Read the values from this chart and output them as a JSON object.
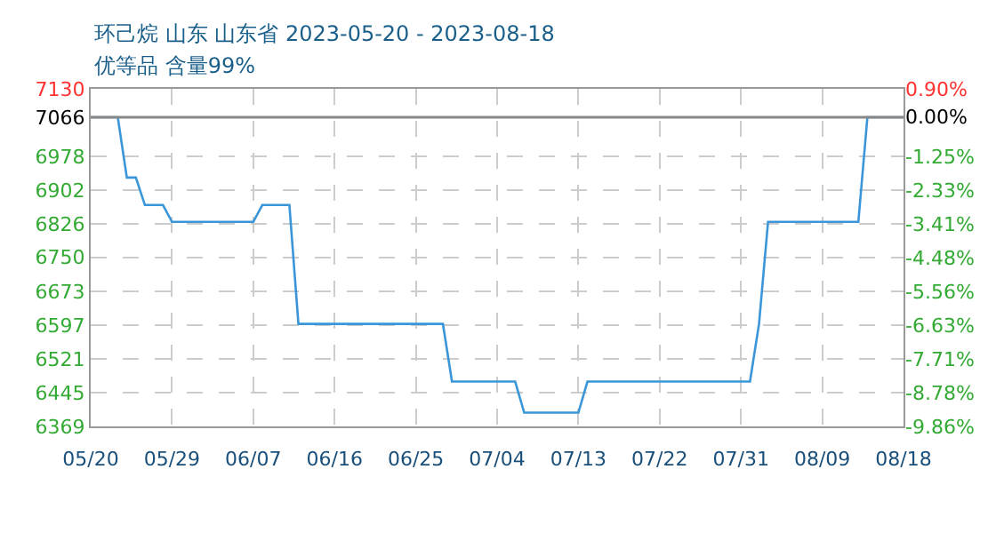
{
  "chart_data": {
    "type": "line",
    "title": "环己烷 山东 山东省 2023-05-20 - 2023-08-18",
    "subtitle": "优等品 含量99%",
    "x": [
      "2023-05-20",
      "2023-05-23",
      "2023-05-24",
      "2023-05-25",
      "2023-05-26",
      "2023-05-28",
      "2023-05-29",
      "2023-06-07",
      "2023-06-08",
      "2023-06-11",
      "2023-06-12",
      "2023-06-28",
      "2023-06-29",
      "2023-07-06",
      "2023-07-07",
      "2023-07-13",
      "2023-07-14",
      "2023-08-01",
      "2023-08-02",
      "2023-08-03",
      "2023-08-13",
      "2023-08-14",
      "2023-08-18"
    ],
    "series": [
      {
        "color": "#3a96d8",
        "values": [
          7066,
          7066,
          6930,
          6930,
          6868,
          6868,
          6830,
          6830,
          6868,
          6868,
          6600,
          6600,
          6470,
          6470,
          6400,
          6400,
          6470,
          6470,
          6600,
          6830,
          6830,
          7066,
          7066
        ]
      }
    ],
    "xlim": [
      "2023-05-20",
      "2023-08-18"
    ],
    "xticks": [
      {
        "value": "2023-05-20",
        "label": "05/20"
      },
      {
        "value": "2023-05-29",
        "label": "05/29"
      },
      {
        "value": "2023-06-07",
        "label": "06/07"
      },
      {
        "value": "2023-06-16",
        "label": "06/16"
      },
      {
        "value": "2023-06-25",
        "label": "06/25"
      },
      {
        "value": "2023-07-04",
        "label": "07/04"
      },
      {
        "value": "2023-07-13",
        "label": "07/13"
      },
      {
        "value": "2023-07-22",
        "label": "07/22"
      },
      {
        "value": "2023-07-31",
        "label": "07/31"
      },
      {
        "value": "2023-08-09",
        "label": "08/09"
      },
      {
        "value": "2023-08-18",
        "label": "08/18"
      }
    ],
    "ylim": [
      6369,
      7130
    ],
    "yticks": [
      7130,
      7066,
      6978,
      6902,
      6826,
      6750,
      6673,
      6597,
      6521,
      6445,
      6369
    ],
    "y2lim": [
      -9.86,
      0.9
    ],
    "y2ticks": [
      {
        "value": 0.9,
        "label": "0.90%"
      },
      {
        "value": 0.0,
        "label": "0.00%"
      },
      {
        "value": -1.25,
        "label": "-1.25%"
      },
      {
        "value": -2.33,
        "label": "-2.33%"
      },
      {
        "value": -3.41,
        "label": "-3.41%"
      },
      {
        "value": -4.48,
        "label": "-4.48%"
      },
      {
        "value": -5.56,
        "label": "-5.56%"
      },
      {
        "value": -6.63,
        "label": "-6.63%"
      },
      {
        "value": -7.71,
        "label": "-7.71%"
      },
      {
        "value": -8.78,
        "label": "-8.78%"
      },
      {
        "value": -9.86,
        "label": "-9.86%"
      }
    ],
    "ref_lines": [
      {
        "axis": "y",
        "value": 7066,
        "color": "#888888"
      }
    ],
    "grid": true
  }
}
